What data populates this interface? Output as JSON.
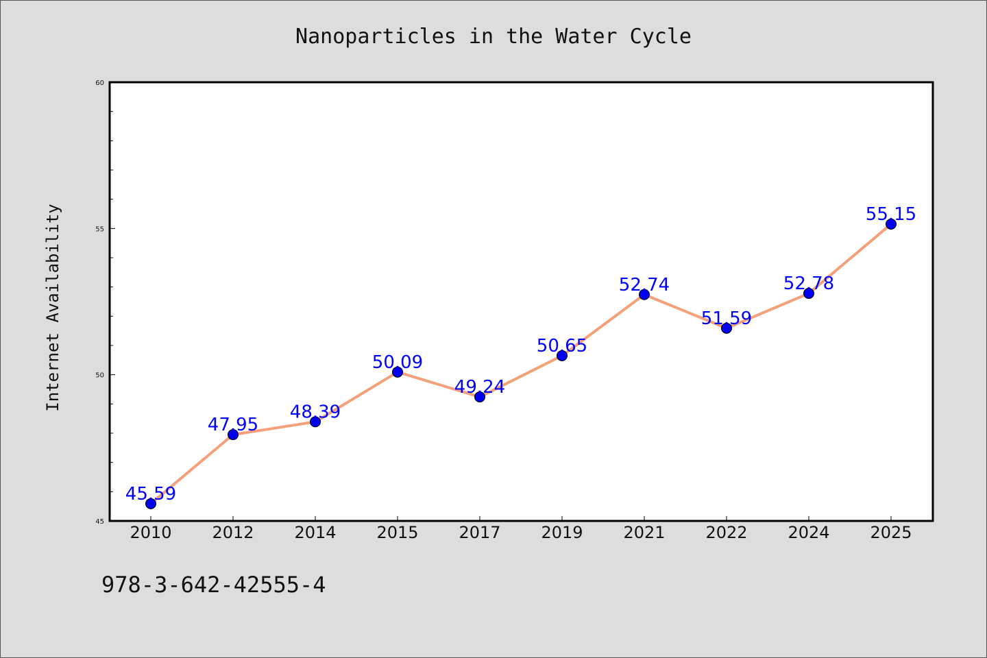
{
  "chart_data": {
    "type": "line",
    "title": "Nanoparticles in the Water Cycle",
    "xlabel": "",
    "ylabel": "Internet Availability",
    "categories": [
      "2010",
      "2012",
      "2014",
      "2015",
      "2017",
      "2019",
      "2021",
      "2022",
      "2024",
      "2025"
    ],
    "series": [
      {
        "values": [
          45.59,
          47.95,
          48.39,
          50.09,
          49.24,
          50.65,
          52.74,
          51.59,
          52.78,
          55.15
        ],
        "labels": [
          "45.59",
          "47.95",
          "48.39",
          "50.09",
          "49.24",
          "50.65",
          "52.74",
          "51.59",
          "52.78",
          "55.15"
        ],
        "line_color": "#f4a07a",
        "marker_color": "#0000ee",
        "label_color": "#0000ff"
      }
    ],
    "ylim": [
      45,
      60
    ],
    "yticks": [
      "45",
      "50",
      "55",
      "60"
    ],
    "grid": false,
    "legend": "none"
  },
  "footnote": "978-3-642-42555-4"
}
